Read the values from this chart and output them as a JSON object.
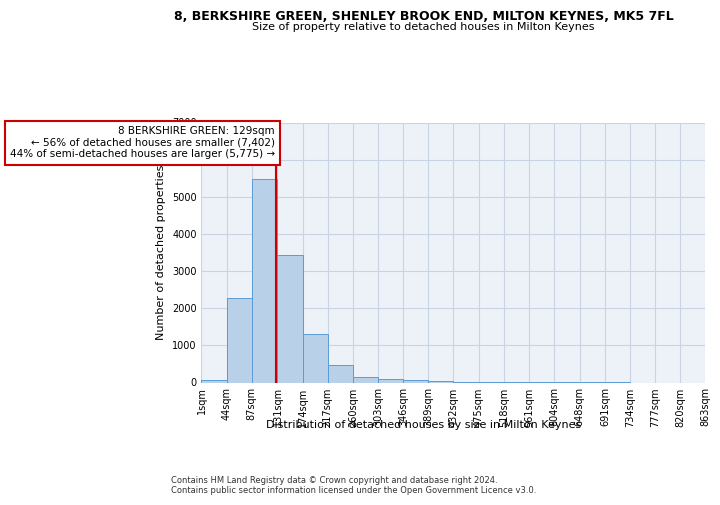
{
  "title": "8, BERKSHIRE GREEN, SHENLEY BROOK END, MILTON KEYNES, MK5 7FL",
  "subtitle": "Size of property relative to detached houses in Milton Keynes",
  "xlabel": "Distribution of detached houses by size in Milton Keynes",
  "ylabel": "Number of detached properties",
  "footer_line1": "Contains HM Land Registry data © Crown copyright and database right 2024.",
  "footer_line2": "Contains public sector information licensed under the Open Government Licence v3.0.",
  "bar_color": "#b8d0e8",
  "bar_edge_color": "#5b9bd5",
  "grid_color": "#c8d4e4",
  "background_color": "#edf2f8",
  "annotation_box_edge": "#cc0000",
  "property_line_color": "#cc0000",
  "annotation_text_line1": "8 BERKSHIRE GREEN: 129sqm",
  "annotation_text_line2": "← 56% of detached houses are smaller (7,402)",
  "annotation_text_line3": "44% of semi-detached houses are larger (5,775) →",
  "property_size_sqm": 129,
  "bin_edges": [
    1,
    44,
    87,
    131,
    174,
    217,
    260,
    303,
    346,
    389,
    432,
    475,
    518,
    561,
    604,
    648,
    691,
    734,
    777,
    820,
    863
  ],
  "bin_labels": [
    "1sqm",
    "44sqm",
    "87sqm",
    "131sqm",
    "174sqm",
    "217sqm",
    "260sqm",
    "303sqm",
    "346sqm",
    "389sqm",
    "432sqm",
    "475sqm",
    "518sqm",
    "561sqm",
    "604sqm",
    "648sqm",
    "691sqm",
    "734sqm",
    "777sqm",
    "820sqm",
    "863sqm"
  ],
  "bar_heights": [
    80,
    2270,
    5480,
    3440,
    1310,
    470,
    160,
    95,
    65,
    40,
    20,
    10,
    5,
    3,
    2,
    1,
    1,
    0,
    0,
    0
  ],
  "ylim": [
    0,
    7000
  ],
  "yticks": [
    0,
    1000,
    2000,
    3000,
    4000,
    5000,
    6000,
    7000
  ],
  "title_fontsize": 9,
  "subtitle_fontsize": 8,
  "ylabel_fontsize": 8,
  "xlabel_fontsize": 8,
  "tick_fontsize": 7,
  "footer_fontsize": 6
}
